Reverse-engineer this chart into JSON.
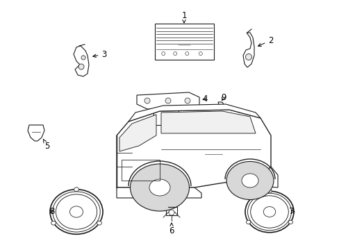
{
  "background_color": "#ffffff",
  "line_color": "#1a1a1a",
  "text_color": "#000000",
  "fig_width": 4.89,
  "fig_height": 3.6,
  "dpi": 100,
  "car": {
    "body_color": "#ffffff",
    "tire_color": "#cccccc"
  }
}
